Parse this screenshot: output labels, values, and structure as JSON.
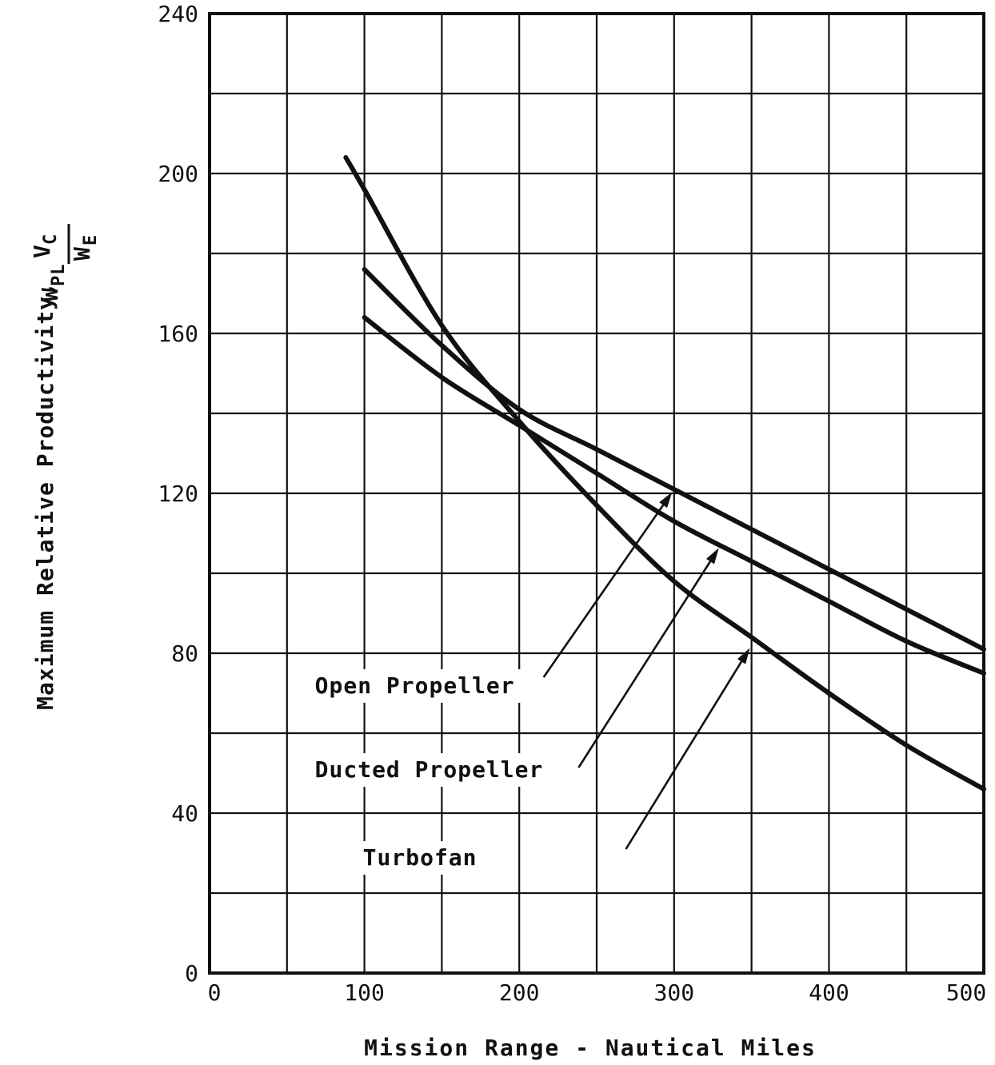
{
  "chart_data": {
    "type": "line",
    "title": "",
    "xlabel": "Mission Range - Nautical Miles",
    "ylabel": {
      "text": "Maximum Relative Productivity,",
      "fraction": {
        "numerator": {
          "w": "W",
          "w_sub": "PL",
          "v": "V",
          "v_sub": "C"
        },
        "denominator": {
          "w": "W",
          "w_sub": "E"
        }
      }
    },
    "xlim": [
      0,
      500
    ],
    "ylim": [
      0,
      240
    ],
    "xticks": [
      0,
      100,
      200,
      300,
      400,
      500
    ],
    "yticks": [
      0,
      40,
      80,
      120,
      160,
      200,
      240
    ],
    "grid": true,
    "series": [
      {
        "name": "Open Propeller",
        "x": [
          100,
          150,
          200,
          250,
          300,
          350,
          400,
          450,
          500
        ],
        "y": [
          176,
          157,
          141,
          131,
          121,
          111,
          101,
          91,
          81
        ]
      },
      {
        "name": "Ducted Propeller",
        "x": [
          100,
          150,
          200,
          250,
          300,
          350,
          400,
          450,
          500
        ],
        "y": [
          164,
          149,
          137,
          125,
          113,
          103,
          93,
          83,
          75
        ]
      },
      {
        "name": "Turbofan",
        "x": [
          88,
          100,
          150,
          200,
          250,
          300,
          350,
          400,
          450,
          500
        ],
        "y": [
          204,
          196,
          162,
          138,
          117,
          98,
          84,
          70,
          57,
          46
        ]
      }
    ],
    "annotations": [
      {
        "text": "Open Propeller",
        "series": "Open Propeller",
        "label_at": [
          68,
          70
        ],
        "arrow_to": [
          300,
          121
        ]
      },
      {
        "text": "Ducted Propeller",
        "series": "Ducted Propeller",
        "label_at": [
          68,
          49
        ],
        "arrow_to": [
          330,
          107
        ]
      },
      {
        "text": "Turbofan",
        "series": "Turbofan",
        "label_at": [
          99,
          27
        ],
        "arrow_to": [
          350,
          82
        ]
      }
    ]
  }
}
